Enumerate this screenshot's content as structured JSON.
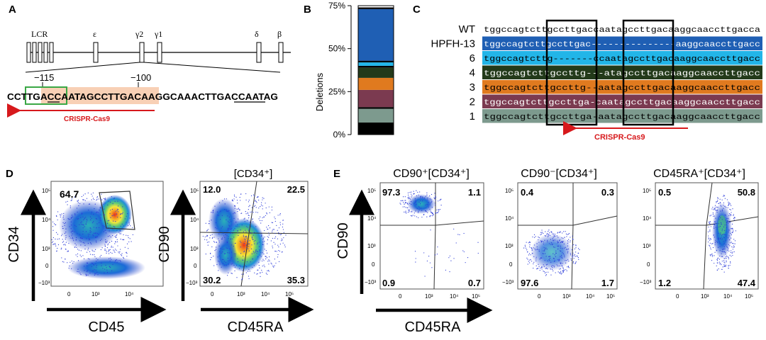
{
  "panels": {
    "a": {
      "label": "A",
      "genes": [
        "LCR",
        "ε",
        "γ2",
        "γ1",
        "δ",
        "β"
      ],
      "pos115": "−115",
      "pos100": "−100",
      "sequence": "CCTTGACCAATAGCCTTGACAAGGCAAACTTGACCAATAG",
      "crispr": "CRISPR-Cas9"
    },
    "b": {
      "label": "B",
      "ylabel": "Deletions",
      "ticks": [
        "0%",
        "25%",
        "50%",
        "75%"
      ]
    },
    "c": {
      "label": "C",
      "crispr": "CRISPR-Cas9",
      "rows": [
        {
          "label": "WT",
          "seq": "tggccagtcttgccttgaccaatagccttgacaaggcaaccttgacca",
          "color": "#ffffff",
          "text": "#000000"
        },
        {
          "label": "HPFH-13",
          "seq": "tggccagtcttgccttgac---------------aaggcaaccttgacc",
          "color": "#1f5fb4",
          "text": "#ffffff"
        },
        {
          "label": "6",
          "seq": "tggccagtcttg-------ccaatagccttgacaaggcaaccttgacc",
          "color": "#22b5e8",
          "text": "#000000"
        },
        {
          "label": "4",
          "seq": "tggccagtcttgccttg---atagccttgacaaggcaaccttgacc",
          "color": "#233a1a",
          "text": "#ffffff"
        },
        {
          "label": "3",
          "seq": "tggccagtcttgccttg--aatagccttgacaaggcaaccttgacc",
          "color": "#e07a1f",
          "text": "#000000"
        },
        {
          "label": "2",
          "seq": "tggccagtcttgccttga-caatagccttgacaaggcaaccttgacc",
          "color": "#7b3a50",
          "text": "#ffffff"
        },
        {
          "label": "1",
          "seq": "tggccagtcttgccttga-aatagccttgacaaggcaaccttgacc",
          "color": "#7d9a8e",
          "text": "#000000"
        }
      ]
    },
    "d": {
      "label": "D",
      "plot1": {
        "ylabel": "CD34",
        "xlabel": "CD45",
        "gate": "64.7"
      },
      "plot2": {
        "title": "[CD34⁺]",
        "ylabel": "CD90",
        "xlabel": "CD45RA",
        "q": [
          "12.0",
          "22.5",
          "30.2",
          "35.3"
        ]
      }
    },
    "e": {
      "label": "E",
      "ylabel": "CD90",
      "xlabel": "CD45RA",
      "plots": [
        {
          "title": "CD90⁺[CD34⁺]",
          "q": [
            "97.3",
            "1.1",
            "0.9",
            "0.7"
          ]
        },
        {
          "title": "CD90⁻[CD34⁺]",
          "q": [
            "0.4",
            "0.3",
            "97.6",
            "1.7"
          ]
        },
        {
          "title": "CD45RA⁺[CD34⁺]",
          "q": [
            "0.5",
            "50.8",
            "1.2",
            "47.4"
          ]
        }
      ]
    }
  },
  "chart_data": {
    "type": "bar",
    "title": "",
    "categories": [
      ""
    ],
    "ylabel": "Deletions",
    "ylim": [
      0,
      75
    ],
    "series": [
      {
        "color": "#000000",
        "values": [
          7
        ]
      },
      {
        "color": "#7d9a8e",
        "values": [
          8
        ]
      },
      {
        "color": "#000000",
        "values": [
          1
        ]
      },
      {
        "color": "#7b3a50",
        "values": [
          10
        ]
      },
      {
        "color": "#e07a1f",
        "values": [
          7
        ]
      },
      {
        "color": "#233a1a",
        "values": [
          6
        ]
      },
      {
        "color": "#000000",
        "values": [
          1
        ]
      },
      {
        "color": "#22b5e8",
        "values": [
          2
        ]
      },
      {
        "color": "#000000",
        "values": [
          1
        ]
      },
      {
        "color": "#1f5fb4",
        "values": [
          30
        ]
      },
      {
        "color": "#000000",
        "values": [
          1
        ]
      },
      {
        "color": "#ffffff",
        "values": [
          1
        ]
      }
    ]
  }
}
